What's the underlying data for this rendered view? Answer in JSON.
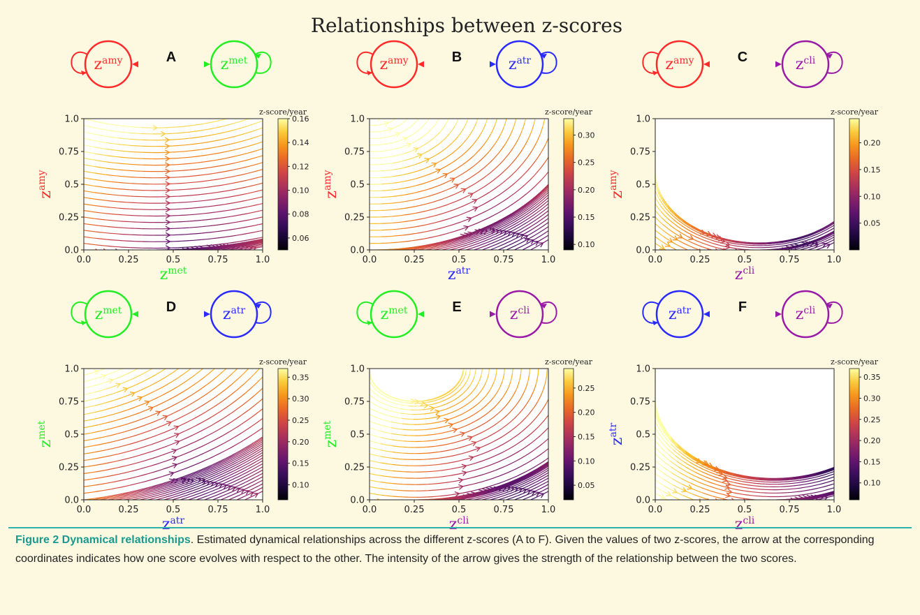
{
  "figure": {
    "title": "Relationships between z-scores",
    "colorbar_label": "z-score/year"
  },
  "colors": {
    "amy": "#ff2a2a",
    "met": "#22ee22",
    "atr": "#2a2aff",
    "cli": "#9a1aa8",
    "background": "#fdf9e1",
    "caption_head": "#1a9a8f"
  },
  "caption": {
    "head": "Figure 2 Dynamical relationships",
    "text": ". Estimated dynamical relationships across the different z-scores (A to F). Given the values of two z-scores, the arrow at the corresponding coordinates indicates how one score evolves with respect to the other. The intensity of the arrow gives the strength of the relationship between the two scores."
  },
  "chart_data": [
    {
      "panel": "A",
      "type": "streamplot",
      "nodes": [
        {
          "base": "z",
          "sup": "amy"
        },
        {
          "base": "z",
          "sup": "met"
        }
      ],
      "xlabel": {
        "base": "z",
        "sup": "met"
      },
      "ylabel": {
        "base": "z",
        "sup": "amy"
      },
      "xlim": [
        0,
        1
      ],
      "ylim": [
        0,
        1
      ],
      "xticks": [
        "0.0",
        "0.25",
        "0.5",
        "0.75",
        "1.0"
      ],
      "yticks": [
        "0.0",
        "0.25",
        "0.5",
        "0.75",
        "1.0"
      ],
      "colorbar": {
        "min": 0.05,
        "max": 0.16,
        "ticks": [
          "0.16",
          "0.14",
          "0.12",
          "0.10",
          "0.08",
          "0.06"
        ],
        "tick_values": [
          0.16,
          0.14,
          0.12,
          0.1,
          0.08,
          0.06
        ]
      },
      "field": {
        "bx": 1.0,
        "by": 0.35,
        "bend": 0.5,
        "cx": 0.5,
        "cy": 0.0
      }
    },
    {
      "panel": "B",
      "type": "streamplot",
      "nodes": [
        {
          "base": "z",
          "sup": "amy"
        },
        {
          "base": "z",
          "sup": "atr"
        }
      ],
      "xlabel": {
        "base": "z",
        "sup": "atr"
      },
      "ylabel": {
        "base": "z",
        "sup": "amy"
      },
      "xlim": [
        0,
        1
      ],
      "ylim": [
        0,
        1
      ],
      "xticks": [
        "0.0",
        "0.25",
        "0.5",
        "0.75",
        "1.0"
      ],
      "yticks": [
        "0.0",
        "0.25",
        "0.5",
        "0.75",
        "1.0"
      ],
      "colorbar": {
        "min": 0.09,
        "max": 0.33,
        "ticks": [
          "0.30",
          "0.25",
          "0.20",
          "0.15",
          "0.10"
        ],
        "tick_values": [
          0.3,
          0.25,
          0.2,
          0.15,
          0.1
        ]
      },
      "field": {
        "bx": 1.0,
        "by": 0.9,
        "bend": 0.9,
        "cx": 0.75,
        "cy": 0.0
      }
    },
    {
      "panel": "C",
      "type": "streamplot",
      "nodes": [
        {
          "base": "z",
          "sup": "amy"
        },
        {
          "base": "z",
          "sup": "cli"
        }
      ],
      "xlabel": {
        "base": "z",
        "sup": "cli"
      },
      "ylabel": {
        "base": "z",
        "sup": "amy"
      },
      "xlim": [
        0,
        1
      ],
      "ylim": [
        0,
        1
      ],
      "xticks": [
        "0.0",
        "0.25",
        "0.5",
        "0.75",
        "1.0"
      ],
      "yticks": [
        "0.0",
        "0.25",
        "0.5",
        "0.75",
        "1.0"
      ],
      "colorbar": {
        "min": 0.0,
        "max": 0.245,
        "ticks": [
          "0.20",
          "0.15",
          "0.10",
          "0.05"
        ],
        "tick_values": [
          0.2,
          0.15,
          0.1,
          0.05
        ]
      },
      "field": {
        "bx": 0.9,
        "by": 0.6,
        "bend": 1.6,
        "cx": 0.78,
        "cy": 0.05
      }
    },
    {
      "panel": "D",
      "type": "streamplot",
      "nodes": [
        {
          "base": "z",
          "sup": "met"
        },
        {
          "base": "z",
          "sup": "atr"
        }
      ],
      "xlabel": {
        "base": "z",
        "sup": "atr"
      },
      "ylabel": {
        "base": "z",
        "sup": "met"
      },
      "xlim": [
        0,
        1
      ],
      "ylim": [
        0,
        1
      ],
      "xticks": [
        "0.0",
        "0.25",
        "0.5",
        "0.75",
        "1.0"
      ],
      "yticks": [
        "0.0",
        "0.25",
        "0.5",
        "0.75",
        "1.0"
      ],
      "colorbar": {
        "min": 0.065,
        "max": 0.37,
        "ticks": [
          "0.35",
          "0.30",
          "0.25",
          "0.20",
          "0.15",
          "0.10"
        ],
        "tick_values": [
          0.35,
          0.3,
          0.25,
          0.2,
          0.15,
          0.1
        ]
      },
      "field": {
        "bx": 1.0,
        "by": 0.8,
        "bend": 0.6,
        "cx": 0.6,
        "cy": 0.1
      }
    },
    {
      "panel": "E",
      "type": "streamplot",
      "nodes": [
        {
          "base": "z",
          "sup": "met"
        },
        {
          "base": "z",
          "sup": "cli"
        }
      ],
      "xlabel": {
        "base": "z",
        "sup": "cli"
      },
      "ylabel": {
        "base": "z",
        "sup": "met"
      },
      "xlim": [
        0,
        1
      ],
      "ylim": [
        0,
        1
      ],
      "xticks": [
        "0.0",
        "0.25",
        "0.5",
        "0.75",
        "1.0"
      ],
      "yticks": [
        "0.0",
        "0.25",
        "0.5",
        "0.75",
        "1.0"
      ],
      "colorbar": {
        "min": 0.02,
        "max": 0.29,
        "ticks": [
          "0.25",
          "0.20",
          "0.15",
          "0.10",
          "0.05"
        ],
        "tick_values": [
          0.25,
          0.2,
          0.15,
          0.1,
          0.05
        ]
      },
      "field": {
        "bx": 1.0,
        "by": 0.8,
        "bend": 1.0,
        "cx": 0.8,
        "cy": 0.0
      }
    },
    {
      "panel": "F",
      "type": "streamplot",
      "nodes": [
        {
          "base": "z",
          "sup": "atr"
        },
        {
          "base": "z",
          "sup": "cli"
        }
      ],
      "xlabel": {
        "base": "z",
        "sup": "cli"
      },
      "ylabel": {
        "base": "z",
        "sup": "atr"
      },
      "xlim": [
        0,
        1
      ],
      "ylim": [
        0,
        1
      ],
      "xticks": [
        "0.0",
        "0.25",
        "0.5",
        "0.75",
        "1.0"
      ],
      "yticks": [
        "0.0",
        "0.25",
        "0.5",
        "0.75",
        "1.0"
      ],
      "colorbar": {
        "min": 0.06,
        "max": 0.37,
        "ticks": [
          "0.35",
          "0.30",
          "0.25",
          "0.20",
          "0.15",
          "0.10"
        ],
        "tick_values": [
          0.35,
          0.3,
          0.25,
          0.2,
          0.15,
          0.1
        ]
      },
      "field": {
        "bx": 0.9,
        "by": 0.7,
        "bend": 1.5,
        "cx": 0.95,
        "cy": 0.2
      }
    }
  ]
}
